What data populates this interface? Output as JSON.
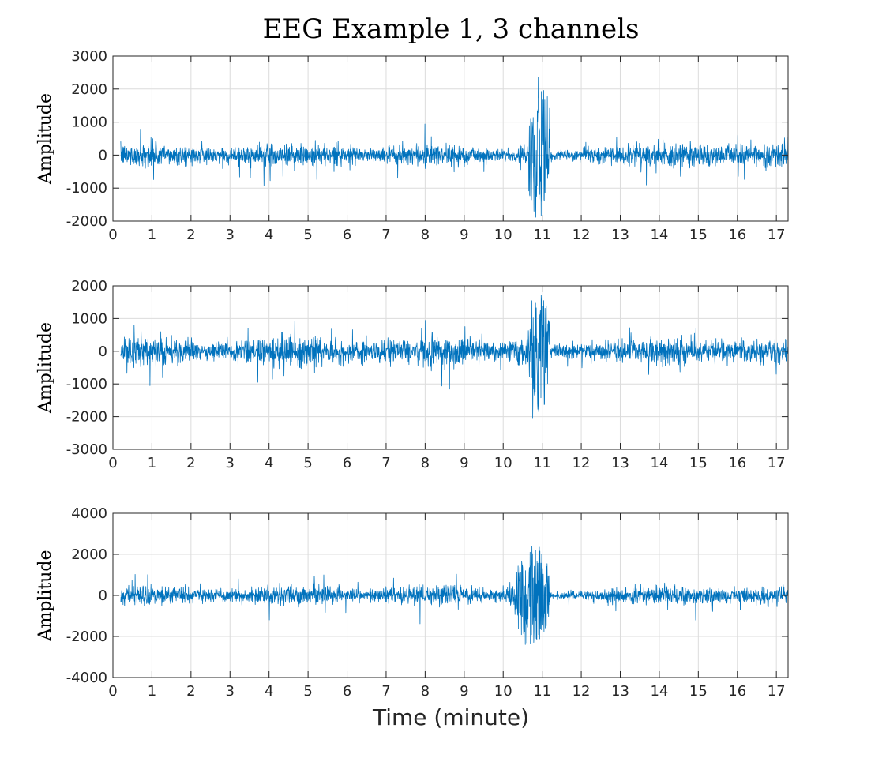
{
  "chart_data": {
    "type": "line",
    "title": "EEG Example 1, 3 channels",
    "xlabel": "Time (minute)",
    "color": "#0072bd",
    "grid": true,
    "xlim": [
      0,
      17.3
    ],
    "xticks": [
      "0",
      "1",
      "2",
      "3",
      "4",
      "5",
      "6",
      "7",
      "8",
      "9",
      "10",
      "11",
      "12",
      "13",
      "14",
      "15",
      "16",
      "17"
    ],
    "panels": [
      {
        "ylabel": "Amplitude",
        "ylim": [
          -2000,
          3000
        ],
        "yticks": [
          "-2000",
          "-1000",
          "0",
          "1000",
          "2000",
          "3000"
        ],
        "signal": {
          "start": 0.2,
          "end": 17.3,
          "baseline_amplitude": 250,
          "burst_start": 10.65,
          "burst_end": 11.2,
          "burst_max": 2750,
          "burst_min": -1750,
          "post_burst_amplitude": 120,
          "late_amplitude": 300
        }
      },
      {
        "ylabel": "Amplitude",
        "ylim": [
          -3000,
          2000
        ],
        "yticks": [
          "-3000",
          "-2000",
          "-1000",
          "0",
          "1000",
          "2000"
        ],
        "signal": {
          "start": 0.2,
          "end": 17.3,
          "baseline_amplitude": 350,
          "burst_start": 10.7,
          "burst_end": 11.2,
          "burst_max": 1600,
          "burst_min": -2050,
          "post_burst_amplitude": 200,
          "late_amplitude": 320
        }
      },
      {
        "ylabel": "Amplitude",
        "ylim": [
          -4000,
          4000
        ],
        "yticks": [
          "-4000",
          "-2000",
          "0",
          "2000",
          "4000"
        ],
        "signal": {
          "start": 0.2,
          "end": 17.3,
          "baseline_amplitude": 350,
          "burst_start": 10.3,
          "burst_end": 11.2,
          "burst_max": 2400,
          "burst_min": -2450,
          "post_burst_amplitude": 150,
          "late_amplitude": 350
        }
      }
    ]
  }
}
